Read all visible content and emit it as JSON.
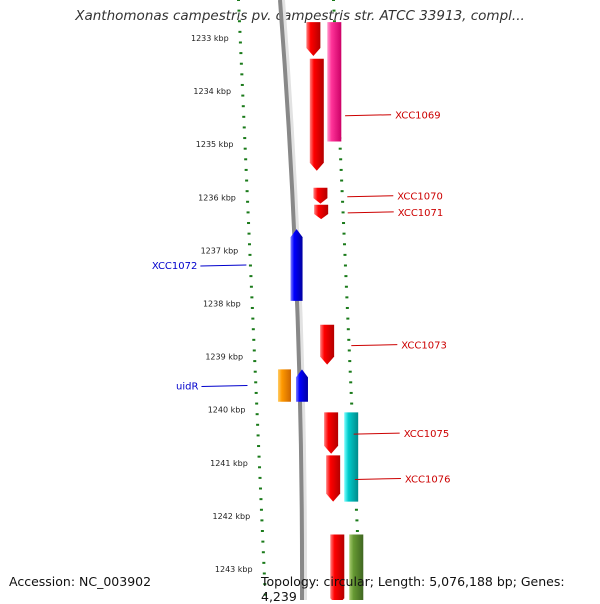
{
  "map": {
    "title": "Xanthomonas campestris pv. campestris str. ATCC 33913, compl...",
    "accession": "Accession: NC_003902",
    "topology": "Topology: circular; Length: 5,076,188 bp; Genes: 4,239"
  },
  "scale": {
    "unit": "kbp",
    "ticks": [
      {
        "kbp": 1233,
        "label": "1233 kbp"
      },
      {
        "kbp": 1234,
        "label": "1234 kbp"
      },
      {
        "kbp": 1235,
        "label": "1235 kbp"
      },
      {
        "kbp": 1236,
        "label": "1236 kbp"
      },
      {
        "kbp": 1237,
        "label": "1237 kbp"
      },
      {
        "kbp": 1238,
        "label": "1238 kbp"
      },
      {
        "kbp": 1239,
        "label": "1239 kbp"
      },
      {
        "kbp": 1240,
        "label": "1240 kbp"
      },
      {
        "kbp": 1241,
        "label": "1241 kbp"
      },
      {
        "kbp": 1242,
        "label": "1242 kbp"
      },
      {
        "kbp": 1243,
        "label": "1243 kbp"
      }
    ]
  },
  "features": [
    {
      "name": "",
      "start_kbp": 1232.7,
      "end_kbp": 1233.34,
      "strand": "+",
      "track": "forward-cds",
      "color": "#ff0000"
    },
    {
      "name": "",
      "start_kbp": 1232.7,
      "end_kbp": 1234.95,
      "strand": "+",
      "track": "forward-gene",
      "color": "#ff3399"
    },
    {
      "name": "XCC1069",
      "start_kbp": 1233.39,
      "end_kbp": 1235.5,
      "strand": "+",
      "track": "forward-cds",
      "color": "#ff0000",
      "label_color": "#cc0000"
    },
    {
      "name": "XCC1070",
      "start_kbp": 1235.82,
      "end_kbp": 1236.12,
      "strand": "+",
      "track": "forward-cds",
      "color": "#ff0000",
      "label_color": "#cc0000"
    },
    {
      "name": "XCC1071",
      "start_kbp": 1236.14,
      "end_kbp": 1236.41,
      "strand": "+",
      "track": "forward-cds",
      "color": "#ff0000",
      "label_color": "#cc0000"
    },
    {
      "name": "XCC1072",
      "start_kbp": 1236.6,
      "end_kbp": 1237.95,
      "strand": "-",
      "track": "reverse-cds",
      "color": "#0000ff",
      "label_color": "#0000cc"
    },
    {
      "name": "XCC1073",
      "start_kbp": 1238.4,
      "end_kbp": 1239.15,
      "strand": "+",
      "track": "forward-cds",
      "color": "#ff0000",
      "label_color": "#cc0000"
    },
    {
      "name": "uidR",
      "start_kbp": 1239.24,
      "end_kbp": 1239.85,
      "strand": "-",
      "track": "reverse-gene",
      "color": "#ff9900",
      "label_color": "#0000cc"
    },
    {
      "name": "",
      "start_kbp": 1239.24,
      "end_kbp": 1239.85,
      "strand": "-",
      "track": "reverse-cds",
      "color": "#0000ff"
    },
    {
      "name": "XCC1075",
      "start_kbp": 1240.05,
      "end_kbp": 1240.83,
      "strand": "+",
      "track": "forward-cds",
      "color": "#ff0000",
      "label_color": "#cc0000"
    },
    {
      "name": "",
      "start_kbp": 1240.05,
      "end_kbp": 1241.73,
      "strand": "+",
      "track": "forward-gene",
      "color": "#00cccc"
    },
    {
      "name": "XCC1076",
      "start_kbp": 1240.86,
      "end_kbp": 1241.73,
      "strand": "+",
      "track": "forward-cds",
      "color": "#ff0000",
      "label_color": "#cc0000"
    },
    {
      "name": "",
      "start_kbp": 1242.35,
      "end_kbp": 1243.7,
      "strand": "+",
      "track": "forward-cds",
      "color": "#ff0000"
    },
    {
      "name": "",
      "start_kbp": 1242.35,
      "end_kbp": 1243.7,
      "strand": "+",
      "track": "forward-gene",
      "color": "#669933"
    }
  ]
}
